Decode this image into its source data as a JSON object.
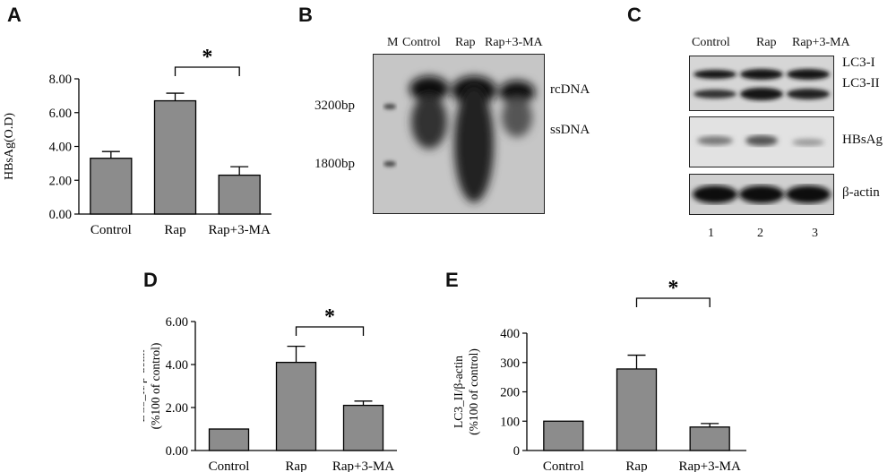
{
  "panels": {
    "A": "A",
    "B": "B",
    "C": "C",
    "D": "D",
    "E": "E"
  },
  "chart_data": [
    {
      "panel": "A",
      "type": "bar",
      "categories": [
        "Control",
        "Rap",
        "Rap+3-MA"
      ],
      "values": [
        3.3,
        6.7,
        2.3
      ],
      "errors": [
        0.4,
        0.45,
        0.5
      ],
      "ylabel": "HBsAg(O.D)",
      "ylim": [
        0,
        8
      ],
      "yticks": [
        "0.00",
        "2.00",
        "4.00",
        "6.00",
        "8.00"
      ],
      "significance": "*",
      "bar_color": "#8c8c8c"
    },
    {
      "panel": "D",
      "type": "bar",
      "categories": [
        "Control",
        "Rap",
        "Rap+3-MA"
      ],
      "values": [
        1.0,
        4.1,
        2.1
      ],
      "errors": [
        0.0,
        0.75,
        0.2
      ],
      "ylabel": "LC3_II/β-actin",
      "ylabel2": "(%100 of control)",
      "ylim": [
        0,
        6
      ],
      "yticks": [
        "0.00",
        "2.00",
        "4.00",
        "6.00"
      ],
      "significance": "*",
      "bar_color": "#8c8c8c"
    },
    {
      "panel": "E",
      "type": "bar",
      "categories": [
        "Control",
        "Rap",
        "Rap+3-MA"
      ],
      "values": [
        100,
        278,
        80
      ],
      "errors": [
        0,
        47,
        12
      ],
      "ylabel": "LC3_II/β-actin",
      "ylabel2": "(%100 of control)",
      "ylim": [
        0,
        400
      ],
      "yticks": [
        "0",
        "100",
        "200",
        "300",
        "400"
      ],
      "significance": "*",
      "bar_color": "#8c8c8c"
    }
  ],
  "blot_B": {
    "lanes": [
      "M",
      "Control",
      "Rap",
      "Rap+3-MA"
    ],
    "markers": [
      "3200bp",
      "1800bp"
    ],
    "bands": [
      "rcDNA",
      "ssDNA"
    ]
  },
  "blot_C": {
    "lanes": [
      "Control",
      "Rap",
      "Rap+3-MA"
    ],
    "labels": [
      "LC3-I",
      "LC3-II",
      "HBsAg",
      "β-actin"
    ],
    "lane_numbers": [
      "1",
      "2",
      "3"
    ]
  }
}
